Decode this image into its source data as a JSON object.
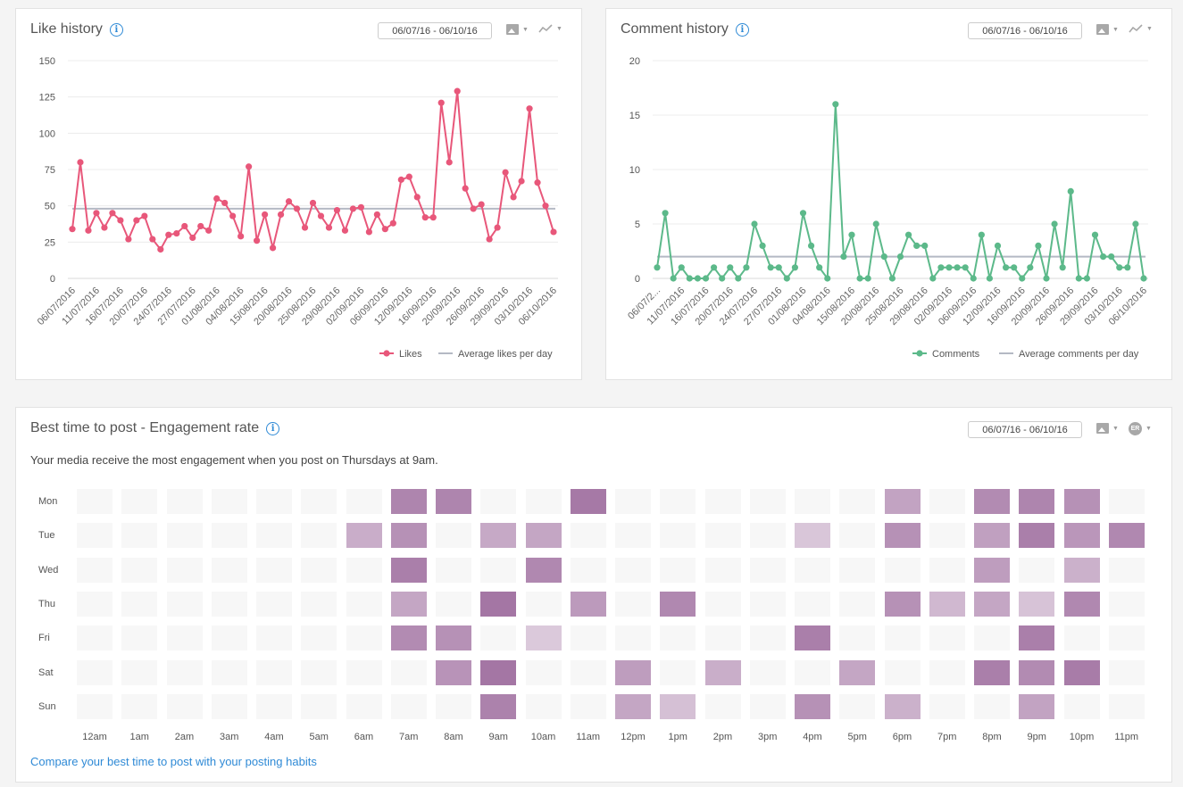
{
  "like_card": {
    "title": "Like history",
    "date_range": "06/07/16 - 06/10/16",
    "legend_series": "Likes",
    "legend_avg": "Average likes per day"
  },
  "comment_card": {
    "title": "Comment history",
    "date_range": "06/07/16 - 06/10/16",
    "legend_series": "Comments",
    "legend_avg": "Average comments per day"
  },
  "best_card": {
    "title": "Best time to post - Engagement rate",
    "date_range": "06/07/16 - 06/10/16",
    "subtitle": "Your media receive the most engagement when you post on Thursdays at 9am.",
    "er_badge": "ER",
    "link": "Compare your best time to post with your posting habits"
  },
  "colors": {
    "likes": "#e8577a",
    "comments": "#5cb98a",
    "average": "#b4b9c4",
    "heat_empty": "#f7f7f7",
    "heat_base": "#9c6a9c",
    "accent": "#2f8ad6"
  },
  "icons": [
    "info-icon",
    "image-icon",
    "line-chart-icon",
    "er-icon",
    "chevron-down-icon"
  ],
  "chart_data": [
    {
      "type": "line",
      "title": "Like history",
      "x_ticks": [
        "06/07/2016",
        "11/07/2016",
        "16/07/2016",
        "20/07/2016",
        "24/07/2016",
        "27/07/2016",
        "01/08/2016",
        "04/08/2016",
        "15/08/2016",
        "20/08/2016",
        "25/08/2016",
        "29/08/2016",
        "02/09/2016",
        "06/09/2016",
        "12/09/2016",
        "16/09/2016",
        "20/09/2016",
        "26/09/2016",
        "29/09/2016",
        "03/10/2016",
        "06/10/2016"
      ],
      "ylim": [
        0,
        150
      ],
      "yticks": [
        0,
        25,
        50,
        75,
        100,
        125,
        150
      ],
      "grid": true,
      "legend": "bottom-right",
      "series": [
        {
          "name": "Likes",
          "values": [
            34,
            80,
            33,
            45,
            35,
            45,
            40,
            27,
            40,
            43,
            27,
            20,
            30,
            31,
            36,
            28,
            36,
            33,
            55,
            52,
            43,
            29,
            77,
            26,
            44,
            21,
            44,
            53,
            48,
            35,
            52,
            43,
            35,
            47,
            33,
            48,
            49,
            32,
            44,
            34,
            38,
            68,
            70,
            56,
            42,
            42,
            121,
            80,
            129,
            62,
            48,
            51,
            27,
            35,
            73,
            56,
            67,
            117,
            66,
            50,
            32
          ]
        },
        {
          "name": "Average likes per day",
          "values": [
            48
          ]
        }
      ]
    },
    {
      "type": "line",
      "title": "Comment history",
      "x_ticks": [
        "06/07/2...",
        "11/07/2016",
        "16/07/2016",
        "20/07/2016",
        "24/07/2016",
        "27/07/2016",
        "01/08/2016",
        "04/08/2016",
        "15/08/2016",
        "20/08/2016",
        "25/08/2016",
        "29/08/2016",
        "02/09/2016",
        "06/09/2016",
        "12/09/2016",
        "16/09/2016",
        "20/09/2016",
        "26/09/2016",
        "29/09/2016",
        "03/10/2016",
        "06/10/2016"
      ],
      "ylim": [
        0,
        20
      ],
      "yticks": [
        0,
        5,
        10,
        15,
        20
      ],
      "grid": true,
      "legend": "bottom-right",
      "series": [
        {
          "name": "Comments",
          "values": [
            1,
            6,
            0,
            1,
            0,
            0,
            0,
            1,
            0,
            1,
            0,
            1,
            5,
            3,
            1,
            1,
            0,
            1,
            6,
            3,
            1,
            0,
            16,
            2,
            4,
            0,
            0,
            5,
            2,
            0,
            2,
            4,
            3,
            3,
            0,
            1,
            1,
            1,
            1,
            0,
            4,
            0,
            3,
            1,
            1,
            0,
            1,
            3,
            0,
            5,
            1,
            8,
            0,
            0,
            4,
            2,
            2,
            1,
            1,
            5,
            0
          ]
        },
        {
          "name": "Average comments per day",
          "values": [
            2
          ]
        }
      ]
    },
    {
      "type": "heatmap",
      "title": "Best time to post - Engagement rate",
      "rows": [
        "Mon",
        "Tue",
        "Wed",
        "Thu",
        "Fri",
        "Sat",
        "Sun"
      ],
      "columns": [
        "12am",
        "1am",
        "2am",
        "3am",
        "4am",
        "5am",
        "6am",
        "7am",
        "8am",
        "9am",
        "10am",
        "11am",
        "12pm",
        "1pm",
        "2pm",
        "3pm",
        "4pm",
        "5pm",
        "6pm",
        "7pm",
        "8pm",
        "9pm",
        "10pm",
        "11pm"
      ],
      "values": [
        [
          0,
          0,
          0,
          0,
          0,
          0,
          0,
          0.82,
          0.82,
          0,
          0,
          0.9,
          0,
          0,
          0,
          0,
          0,
          0,
          0.62,
          0,
          0.78,
          0.82,
          0.74,
          0
        ],
        [
          0,
          0,
          0,
          0,
          0,
          0,
          0.55,
          0.74,
          0,
          0.58,
          0.6,
          0,
          0,
          0,
          0,
          0,
          0.38,
          0,
          0.74,
          0,
          0.64,
          0.86,
          0.7,
          0.8
        ],
        [
          0,
          0,
          0,
          0,
          0,
          0,
          0,
          0.86,
          0,
          0,
          0.8,
          0,
          0,
          0,
          0,
          0,
          0,
          0,
          0,
          0,
          0.66,
          0,
          0.52,
          0
        ],
        [
          0,
          0,
          0,
          0,
          0,
          0,
          0,
          0.6,
          0,
          0.92,
          0,
          0.68,
          0,
          0.8,
          0,
          0,
          0,
          0,
          0.74,
          0.48,
          0.6,
          0.4,
          0.8,
          0
        ],
        [
          0,
          0,
          0,
          0,
          0,
          0,
          0,
          0.78,
          0.74,
          0,
          0.36,
          0,
          0,
          0,
          0,
          0,
          0.86,
          0,
          0,
          0,
          0,
          0.86,
          0,
          0
        ],
        [
          0,
          0,
          0,
          0,
          0,
          0,
          0,
          0,
          0.72,
          0.92,
          0,
          0,
          0.66,
          0,
          0.54,
          0,
          0,
          0.6,
          0,
          0,
          0.86,
          0.78,
          0.88,
          0
        ],
        [
          0,
          0,
          0,
          0,
          0,
          0,
          0,
          0,
          0,
          0.84,
          0,
          0,
          0.6,
          0.42,
          0,
          0,
          0.74,
          0,
          0.52,
          0,
          0,
          0.62,
          0,
          0
        ]
      ]
    }
  ]
}
